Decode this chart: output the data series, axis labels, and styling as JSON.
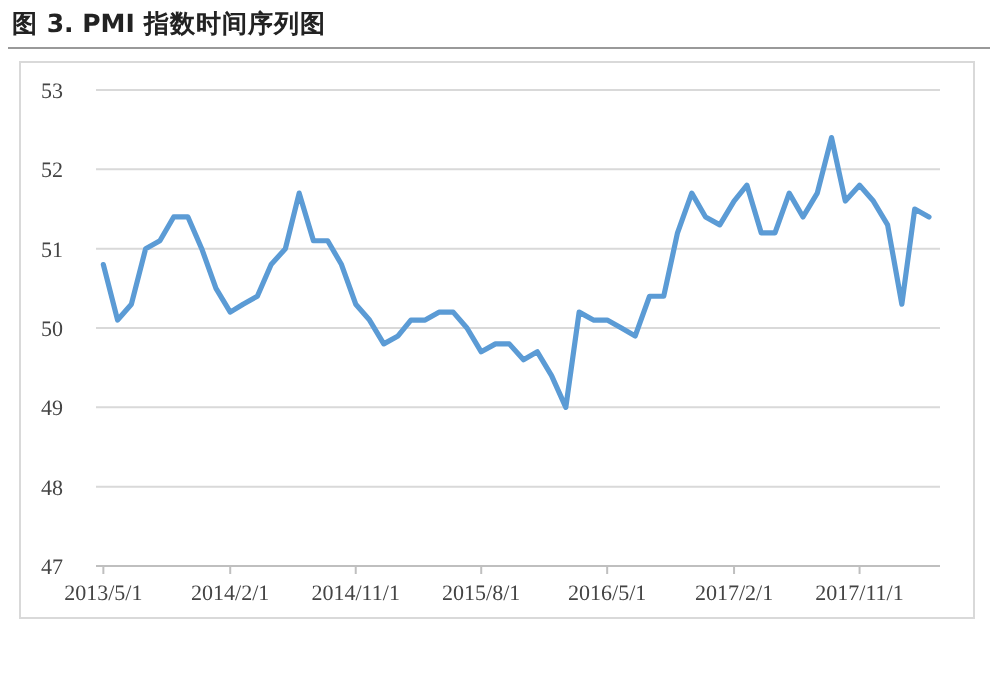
{
  "chart_data": {
    "type": "line",
    "title": "图 3. PMI 指数时间序列图",
    "x": [
      "2013-05",
      "2013-06",
      "2013-07",
      "2013-08",
      "2013-09",
      "2013-10",
      "2013-11",
      "2013-12",
      "2014-01",
      "2014-02",
      "2014-03",
      "2014-04",
      "2014-05",
      "2014-06",
      "2014-07",
      "2014-08",
      "2014-09",
      "2014-10",
      "2014-11",
      "2014-12",
      "2015-01",
      "2015-02",
      "2015-03",
      "2015-04",
      "2015-05",
      "2015-06",
      "2015-07",
      "2015-08",
      "2015-09",
      "2015-10",
      "2015-11",
      "2015-12",
      "2016-01",
      "2016-02",
      "2016-03",
      "2016-04",
      "2016-05",
      "2016-06",
      "2016-07",
      "2016-08",
      "2016-09",
      "2016-10",
      "2016-11",
      "2016-12",
      "2017-01",
      "2017-02",
      "2017-03",
      "2017-04",
      "2017-05",
      "2017-06",
      "2017-07",
      "2017-08",
      "2017-09",
      "2017-10",
      "2017-11",
      "2017-12",
      "2018-01",
      "2018-02",
      "2018-03",
      "2018-04"
    ],
    "series": [
      {
        "color": "#5b9bd5",
        "values": [
          50.8,
          50.1,
          50.3,
          51.0,
          51.1,
          51.4,
          51.4,
          51.0,
          50.5,
          50.2,
          50.3,
          50.4,
          50.8,
          51.0,
          51.7,
          51.1,
          51.1,
          50.8,
          50.3,
          50.1,
          49.8,
          49.9,
          50.1,
          50.1,
          50.2,
          50.2,
          50.0,
          49.7,
          49.8,
          49.8,
          49.6,
          49.7,
          49.4,
          49.0,
          50.2,
          50.1,
          50.1,
          50.0,
          49.9,
          50.4,
          50.4,
          51.2,
          51.7,
          51.4,
          51.3,
          51.6,
          51.8,
          51.2,
          51.2,
          51.7,
          51.4,
          51.7,
          52.4,
          51.6,
          51.8,
          51.6,
          51.3,
          50.3,
          51.5,
          51.4
        ]
      }
    ],
    "xlim": [
      "2013-04-15",
      "2018-04-25"
    ],
    "xticks": [
      {
        "value": "2013-05-01",
        "label": "2013/5/1"
      },
      {
        "value": "2014-02-01",
        "label": "2014/2/1"
      },
      {
        "value": "2014-11-01",
        "label": "2014/11/1"
      },
      {
        "value": "2015-08-01",
        "label": "2015/8/1"
      },
      {
        "value": "2016-05-01",
        "label": "2016/5/1"
      },
      {
        "value": "2017-02-01",
        "label": "2017/2/1"
      },
      {
        "value": "2017-11-01",
        "label": "2017/11/1"
      }
    ],
    "ylim": [
      47,
      53
    ],
    "yticks": [
      47,
      48,
      49,
      50,
      51,
      52,
      53
    ],
    "grid": "y",
    "marker": "none",
    "line_style": "solid"
  }
}
